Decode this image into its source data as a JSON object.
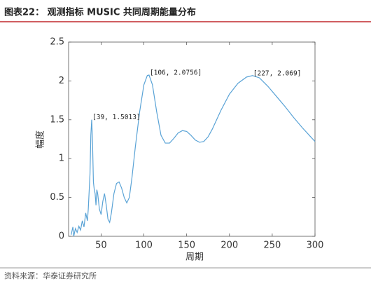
{
  "header": {
    "title": "图表22：  观测指标 MUSIC 共同周期能量分布"
  },
  "footer": {
    "source": "资料来源：华泰证券研究所"
  },
  "chart_data": {
    "type": "line",
    "x_label": "周期",
    "y_label": "幅度",
    "x": [
      15,
      17,
      18,
      20,
      22,
      24,
      26,
      28,
      30,
      32,
      34,
      35,
      37,
      38,
      39,
      40,
      41,
      42,
      43,
      44,
      45,
      46,
      48,
      50,
      52,
      54,
      56,
      58,
      60,
      62,
      65,
      68,
      71,
      74,
      77,
      80,
      83,
      86,
      90,
      95,
      100,
      104,
      106,
      110,
      115,
      120,
      125,
      130,
      135,
      140,
      145,
      150,
      155,
      160,
      165,
      170,
      175,
      180,
      190,
      200,
      210,
      220,
      227,
      235,
      245,
      255,
      265,
      275,
      285,
      295,
      300
    ],
    "values": [
      0.02,
      0.12,
      0.0,
      0.1,
      0.05,
      0.13,
      0.08,
      0.2,
      0.12,
      0.3,
      0.2,
      0.35,
      0.8,
      1.3,
      1.5013,
      1.2,
      0.7,
      0.6,
      0.55,
      0.4,
      0.6,
      0.55,
      0.35,
      0.28,
      0.45,
      0.55,
      0.4,
      0.22,
      0.18,
      0.3,
      0.55,
      0.68,
      0.7,
      0.62,
      0.5,
      0.43,
      0.5,
      0.75,
      1.15,
      1.6,
      1.95,
      2.07,
      2.0756,
      1.95,
      1.6,
      1.3,
      1.2,
      1.2,
      1.26,
      1.33,
      1.36,
      1.35,
      1.3,
      1.24,
      1.21,
      1.22,
      1.28,
      1.38,
      1.62,
      1.83,
      1.97,
      2.05,
      2.069,
      2.04,
      1.93,
      1.8,
      1.67,
      1.53,
      1.4,
      1.28,
      1.22
    ],
    "color": "#5aa3d6",
    "xlim": [
      12,
      300
    ],
    "xticks": [
      50,
      100,
      150,
      200,
      250,
      300
    ],
    "ylim": [
      0,
      2.5
    ],
    "yticks": [
      0,
      0.5,
      1,
      1.5,
      2,
      2.5
    ],
    "annotations": [
      {
        "text": "[39, 1.5013]",
        "x": 39,
        "y": 1.5013
      },
      {
        "text": "[106, 2.0756]",
        "x": 106,
        "y": 2.0756
      },
      {
        "text": "[227, 2.069]",
        "x": 227,
        "y": 2.069
      }
    ]
  }
}
